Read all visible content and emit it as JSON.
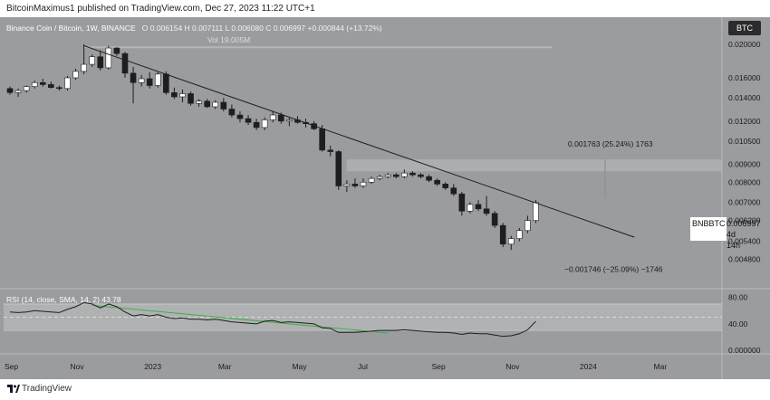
{
  "header": {
    "publisher_line": "BitcoinMaximus1 published on TradingView.com, Dec 27, 2023 11:22 UTC+1"
  },
  "legend": {
    "symbol": "Binance Coin / Bitcoin, 1W, BINANCE",
    "ohlc": "O 0.006154  H 0.007111  L 0.006080  C 0.006997  +0.000844 (+13.72%)",
    "vol": "Vol 19.005M",
    "rsi": "RSI (14, close, SMA, 14, 2)  43.78"
  },
  "currency_button": "BTC",
  "price_tag": {
    "symbol": "BNBBTC",
    "price": "0.006997",
    "countdown": "4d 14h"
  },
  "annotations": {
    "gain": "0.001763 (25.24%) 1763",
    "loss": "−0.001746 (−25.09%) −1746"
  },
  "footer": {
    "brand": "TradingView"
  },
  "colors": {
    "background": "#9b9c9f",
    "up": "#ffffff",
    "down": "#1e1e1e",
    "rsi_line": "#1e1e1e",
    "rsi_sma": "#3cb043",
    "resistance_zone": "#b5b6b8"
  },
  "chart_data": [
    {
      "type": "candlestick",
      "scale": "log",
      "y_ticks": [
        "0.020000",
        "0.016000",
        "0.014000",
        "0.012000",
        "0.010500",
        "0.009000",
        "0.008000",
        "0.007000",
        "0.006200",
        "0.005400",
        "0.004800"
      ],
      "x_ticks": [
        "Sep",
        "Nov",
        "2023",
        "Mar",
        "May",
        "Jul",
        "Sep",
        "Nov",
        "2024",
        "Mar"
      ],
      "x_tick_weeks": [
        0,
        8,
        17,
        26,
        35,
        43,
        52,
        61,
        70,
        79
      ],
      "ylim": [
        0.0045,
        0.022
      ],
      "candles": [
        [
          0.0149,
          0.0151,
          0.0143,
          0.0145
        ],
        [
          0.0145,
          0.0149,
          0.0141,
          0.0147
        ],
        [
          0.0147,
          0.0152,
          0.0145,
          0.0151
        ],
        [
          0.0151,
          0.0157,
          0.0149,
          0.0155
        ],
        [
          0.0155,
          0.0159,
          0.0151,
          0.0153
        ],
        [
          0.0153,
          0.0156,
          0.0149,
          0.015
        ],
        [
          0.015,
          0.0152,
          0.0147,
          0.0149
        ],
        [
          0.0149,
          0.0162,
          0.0147,
          0.016
        ],
        [
          0.016,
          0.017,
          0.0158,
          0.0167
        ],
        [
          0.0167,
          0.02,
          0.0164,
          0.0175
        ],
        [
          0.0175,
          0.0187,
          0.0172,
          0.0184
        ],
        [
          0.0184,
          0.0192,
          0.0168,
          0.0171
        ],
        [
          0.0171,
          0.0198,
          0.0169,
          0.0195
        ],
        [
          0.0195,
          0.0196,
          0.0185,
          0.0188
        ],
        [
          0.0188,
          0.019,
          0.016,
          0.0165
        ],
        [
          0.0165,
          0.0172,
          0.0135,
          0.0155
        ],
        [
          0.0155,
          0.0163,
          0.0151,
          0.0159
        ],
        [
          0.0159,
          0.0166,
          0.0149,
          0.0152
        ],
        [
          0.0152,
          0.0166,
          0.015,
          0.0164
        ],
        [
          0.0164,
          0.0167,
          0.0143,
          0.0145
        ],
        [
          0.0145,
          0.015,
          0.0139,
          0.0141
        ],
        [
          0.0141,
          0.0148,
          0.0136,
          0.0144
        ],
        [
          0.0144,
          0.0146,
          0.0133,
          0.0135
        ],
        [
          0.0135,
          0.0139,
          0.0132,
          0.0137
        ],
        [
          0.0137,
          0.0139,
          0.0131,
          0.0132
        ],
        [
          0.0132,
          0.0138,
          0.013,
          0.0136
        ],
        [
          0.0136,
          0.014,
          0.0128,
          0.013
        ],
        [
          0.013,
          0.0134,
          0.0123,
          0.0125
        ],
        [
          0.0125,
          0.0128,
          0.0119,
          0.0122
        ],
        [
          0.0122,
          0.0125,
          0.0117,
          0.0119
        ],
        [
          0.0119,
          0.0122,
          0.0113,
          0.0115
        ],
        [
          0.0115,
          0.0123,
          0.0113,
          0.0121
        ],
        [
          0.0121,
          0.0128,
          0.0119,
          0.0125
        ],
        [
          0.0125,
          0.0127,
          0.0118,
          0.012
        ],
        [
          0.012,
          0.0123,
          0.0116,
          0.0121
        ],
        [
          0.0121,
          0.0124,
          0.0118,
          0.0119
        ],
        [
          0.0119,
          0.0122,
          0.0115,
          0.0118
        ],
        [
          0.0118,
          0.012,
          0.0113,
          0.0114
        ],
        [
          0.0114,
          0.0117,
          0.0098,
          0.0099
        ],
        [
          0.0099,
          0.0102,
          0.0095,
          0.0098
        ],
        [
          0.0098,
          0.0099,
          0.0076,
          0.0078
        ],
        [
          0.0078,
          0.0081,
          0.0075,
          0.0079
        ],
        [
          0.0079,
          0.0082,
          0.0077,
          0.0078
        ],
        [
          0.0078,
          0.0082,
          0.0077,
          0.008
        ],
        [
          0.008,
          0.0083,
          0.0079,
          0.0082
        ],
        [
          0.0082,
          0.0084,
          0.0081,
          0.0083
        ],
        [
          0.0083,
          0.0085,
          0.0082,
          0.0084
        ],
        [
          0.0084,
          0.0085,
          0.0082,
          0.0083
        ],
        [
          0.0083,
          0.0087,
          0.0082,
          0.0085
        ],
        [
          0.0085,
          0.0086,
          0.0083,
          0.0084
        ],
        [
          0.0084,
          0.0085,
          0.0082,
          0.0083
        ],
        [
          0.0083,
          0.0084,
          0.008,
          0.0081
        ],
        [
          0.0081,
          0.0082,
          0.0078,
          0.0079
        ],
        [
          0.0079,
          0.008,
          0.0076,
          0.0077
        ],
        [
          0.0077,
          0.0079,
          0.0073,
          0.0074
        ],
        [
          0.0074,
          0.0075,
          0.0064,
          0.0066
        ],
        [
          0.0066,
          0.007,
          0.0065,
          0.0069
        ],
        [
          0.0069,
          0.0071,
          0.0066,
          0.0067
        ],
        [
          0.0067,
          0.0073,
          0.0064,
          0.0065
        ],
        [
          0.0065,
          0.0066,
          0.0059,
          0.006
        ],
        [
          0.006,
          0.0061,
          0.0052,
          0.0053
        ],
        [
          0.0053,
          0.0056,
          0.0051,
          0.0055
        ],
        [
          0.0055,
          0.0059,
          0.0054,
          0.0058
        ],
        [
          0.0058,
          0.0064,
          0.0057,
          0.0062
        ],
        [
          0.0062,
          0.0071,
          0.0061,
          0.007
        ]
      ],
      "trendline": {
        "from": [
          9,
          0.0198
        ],
        "to": [
          76,
          0.00555
        ]
      },
      "resistance_zone": [
        0.0086,
        0.0093
      ],
      "range_line": {
        "price": 0.0196,
        "from_week": 9,
        "to_week": 66
      }
    },
    {
      "type": "line",
      "title": "RSI (14, close, SMA, 14, 2)",
      "y_ticks": [
        "80.00",
        "40.00",
        "0.000000"
      ],
      "ylim": [
        0,
        85
      ],
      "bands": {
        "upper": 70,
        "mid": 50,
        "lower": 30
      },
      "rsi": [
        58,
        57,
        58,
        60,
        59,
        58,
        57,
        62,
        66,
        72,
        70,
        64,
        70,
        66,
        58,
        52,
        54,
        52,
        54,
        50,
        48,
        49,
        47,
        47,
        46,
        47,
        45,
        43,
        42,
        41,
        40,
        44,
        45,
        42,
        43,
        42,
        41,
        40,
        34,
        33,
        27,
        27,
        27,
        28,
        29,
        30,
        30,
        30,
        31,
        30,
        29,
        28,
        27,
        27,
        26,
        24,
        26,
        25,
        25,
        23,
        21,
        22,
        25,
        31,
        43.78
      ],
      "sma_segment": {
        "from": [
          10,
          68
        ],
        "to": [
          46,
          26
        ]
      }
    }
  ]
}
